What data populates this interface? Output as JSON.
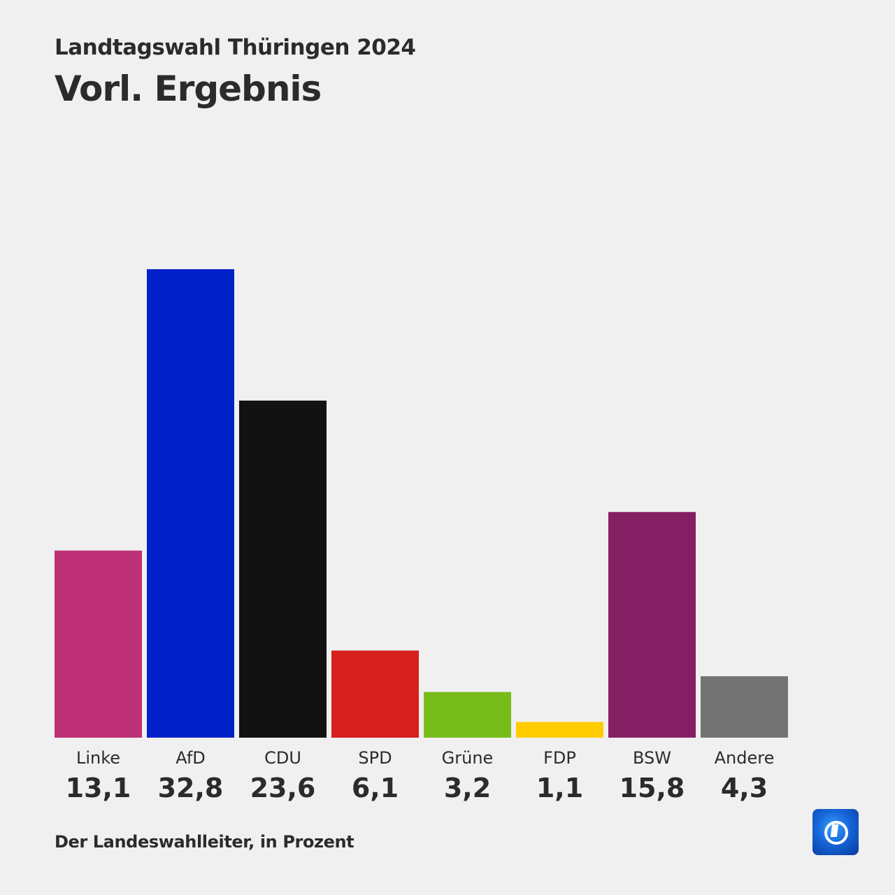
{
  "header": {
    "subtitle": "Landtagswahl Thüringen 2024",
    "title": "Vorl. Ergebnis"
  },
  "footer": {
    "source": "Der Landeswahlleiter, in Prozent",
    "logo": "tagesschau-globe-icon"
  },
  "chart_data": {
    "type": "bar",
    "title": "Vorl. Ergebnis",
    "subtitle": "Landtagswahl Thüringen 2024",
    "xlabel": "",
    "ylabel": "Prozent",
    "categories": [
      "Linke",
      "AfD",
      "CDU",
      "SPD",
      "Grüne",
      "FDP",
      "BSW",
      "Andere"
    ],
    "values": [
      13.1,
      32.8,
      23.6,
      6.1,
      3.2,
      1.1,
      15.8,
      4.3
    ],
    "value_labels": [
      "13,1",
      "32,8",
      "23,6",
      "6,1",
      "3,2",
      "1,1",
      "15,8",
      "4,3"
    ],
    "colors": [
      "#be3075",
      "#0021c8",
      "#121212",
      "#d71f1d",
      "#78bc1b",
      "#ffcc00",
      "#841f63",
      "#737373"
    ],
    "ylim": [
      0,
      32.8
    ],
    "grid": false,
    "legend": "none"
  }
}
